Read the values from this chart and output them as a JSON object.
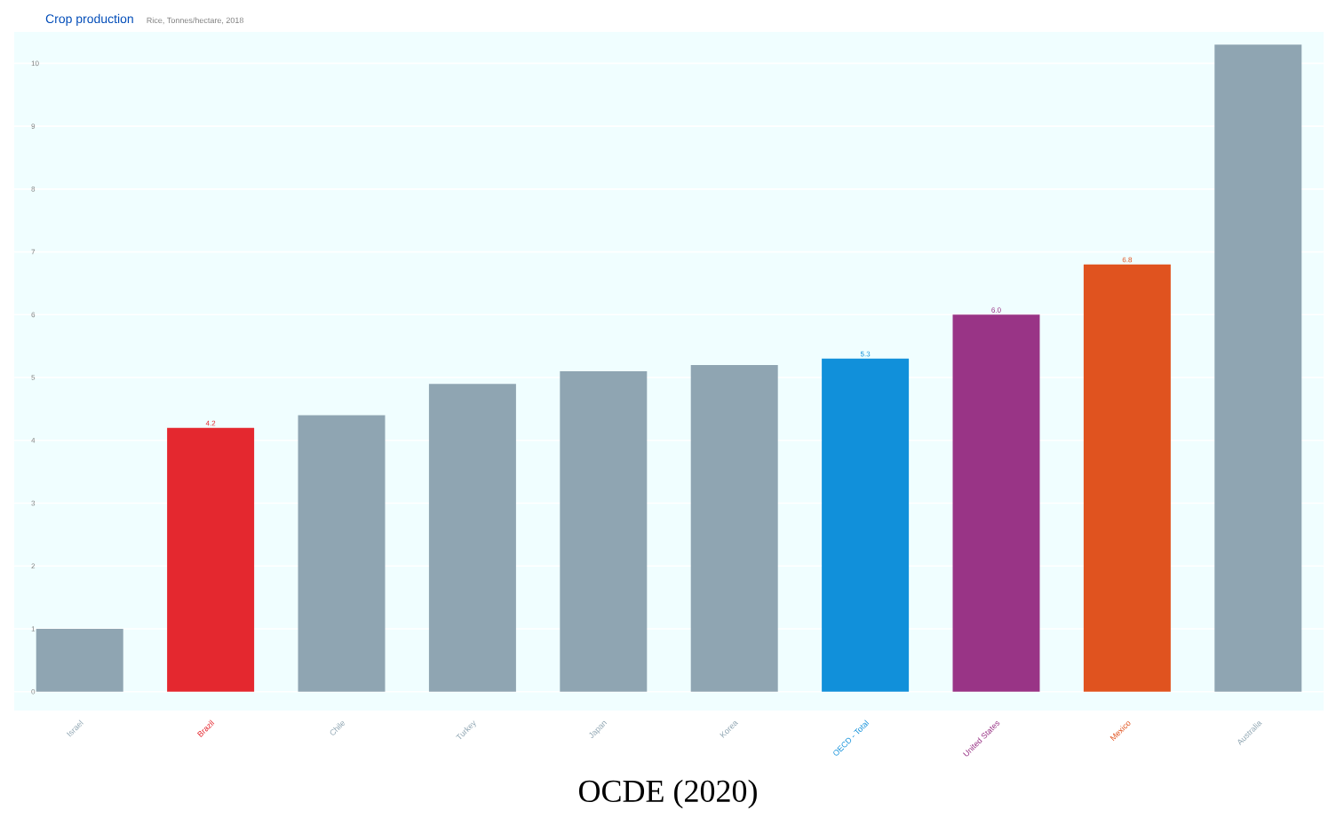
{
  "chart_data": {
    "type": "bar",
    "title": "Crop production",
    "subtitle": "Rice, Tonnes/hectare, 2018",
    "annotations": [
      "OCDE (2020)"
    ],
    "categories": [
      "Israel",
      "Brazil",
      "Chile",
      "Turkey",
      "Japan",
      "Korea",
      "OECD - Total",
      "United States",
      "Mexico",
      "Australia"
    ],
    "values": [
      1.0,
      4.2,
      4.4,
      4.9,
      5.1,
      5.2,
      5.3,
      6.0,
      6.8,
      10.3
    ],
    "colors": [
      "#8fa5b2",
      "#e4282f",
      "#8fa5b2",
      "#8fa5b2",
      "#8fa5b2",
      "#8fa5b2",
      "#1190da",
      "#993486",
      "#e0531f",
      "#8fa5b2"
    ],
    "value_labels": [
      null,
      "4.2",
      null,
      null,
      null,
      null,
      "5.3",
      "6.0",
      "6.8",
      null
    ],
    "ylim": [
      -0.3,
      10.5
    ],
    "yticks": [
      0,
      1,
      2,
      3,
      4,
      5,
      6,
      7,
      8,
      9,
      10
    ],
    "grid": "y"
  }
}
